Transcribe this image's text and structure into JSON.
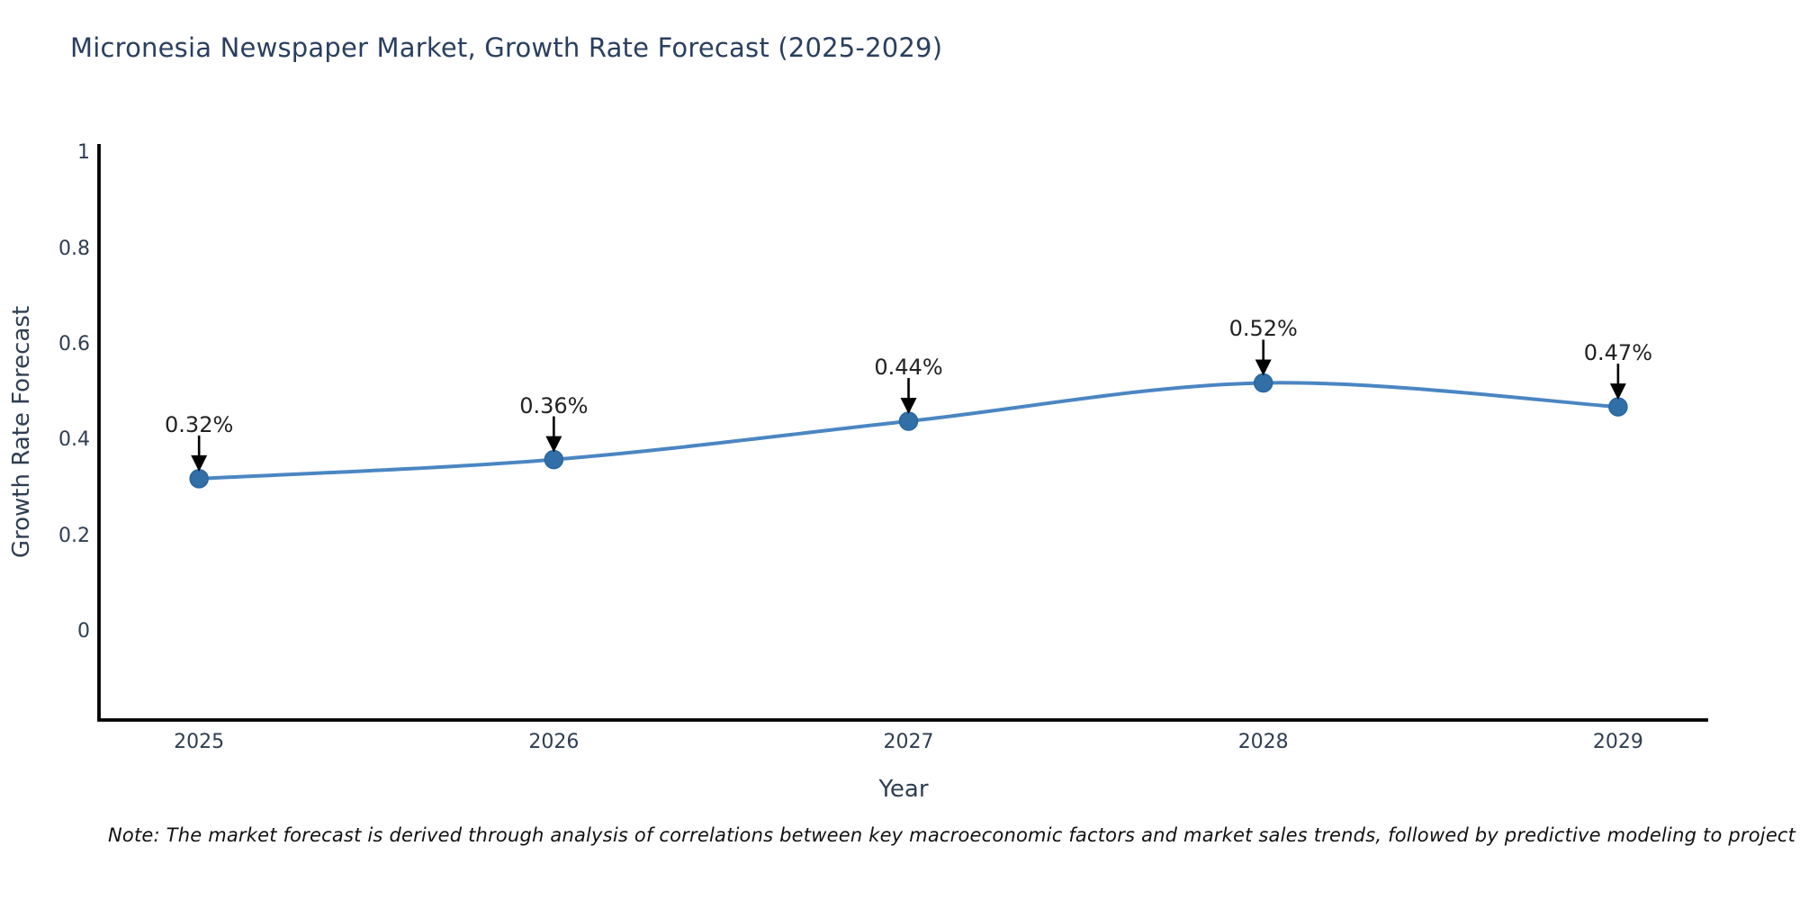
{
  "title": "Micronesia Newspaper Market, Growth Rate Forecast (2025-2029)",
  "note": "Note: The market forecast is derived through analysis of correlations between key macroeconomic factors and market sales trends, followed by predictive modeling to project future sales",
  "chart_data": {
    "type": "line",
    "title": "Micronesia Newspaper Market, Growth Rate Forecast (2025-2029)",
    "xlabel": "Year",
    "ylabel": "Growth Rate Forecast",
    "x": [
      2025,
      2026,
      2027,
      2028,
      2029
    ],
    "values": [
      0.32,
      0.36,
      0.44,
      0.52,
      0.47
    ],
    "point_labels": [
      "0.32%",
      "0.36%",
      "0.44%",
      "0.52%",
      "0.47%"
    ],
    "xtick_labels": [
      "2025",
      "2026",
      "2027",
      "2028",
      "2029"
    ],
    "ytick_values": [
      0,
      0.2,
      0.4,
      0.6,
      0.8,
      1
    ],
    "ytick_labels": [
      "0",
      "0.2",
      "0.4",
      "0.6",
      "0.8",
      "1"
    ],
    "xlim": [
      2024.718,
      2029.254
    ],
    "ylim": [
      -0.184,
      1.019
    ],
    "line_shape": "spline",
    "grid": false,
    "legend": "none",
    "colors": {
      "line": "#4a86c2",
      "marker_fill": "#336fa7",
      "marker_edge": "#27679f",
      "axis_line": "#000000",
      "tick_text": "#2f3e52",
      "axis_title_text": "#2f3e52",
      "chart_title_text": "#2a3f5f",
      "annotation_text": "#222222",
      "annotation_arrow": "#000000",
      "note_text": "#111111"
    }
  }
}
